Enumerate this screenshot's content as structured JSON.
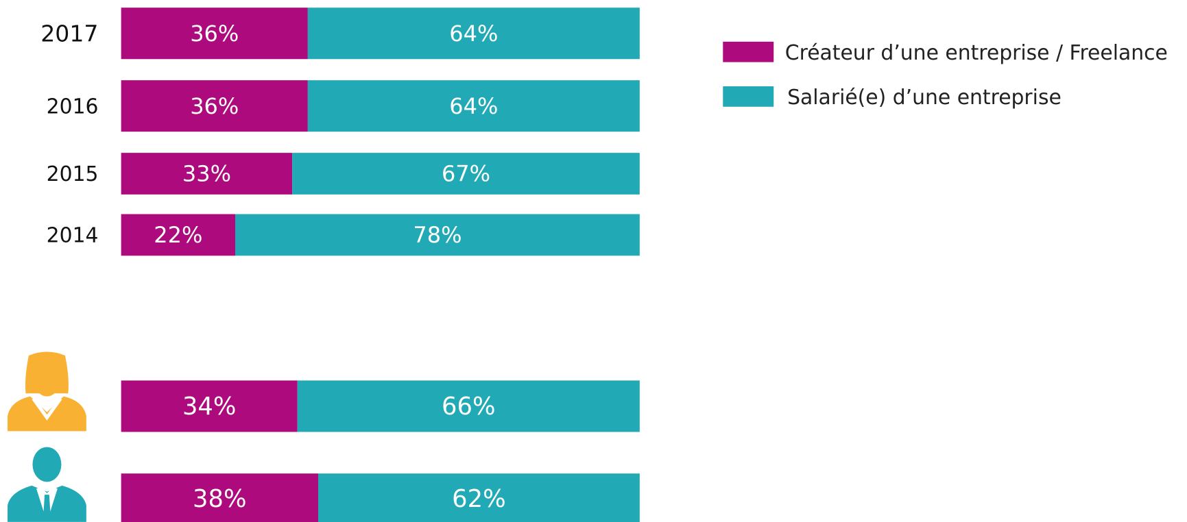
{
  "chart_data": [
    {
      "type": "bar",
      "orientation": "horizontal",
      "stacked": true,
      "categories": [
        "2017",
        "2016",
        "2015",
        "2014"
      ],
      "series": [
        {
          "name": "Créateur d’une entreprise / Freelance",
          "color": "#ac0a7d",
          "values": [
            36,
            36,
            33,
            22
          ],
          "value_labels": [
            "36%",
            "36%",
            "33%",
            "22%"
          ]
        },
        {
          "name": "Salarié(e) d’une entreprise",
          "color": "#21a9b5",
          "values": [
            64,
            64,
            67,
            78
          ],
          "value_labels": [
            "64%",
            "64%",
            "67%",
            "78%"
          ]
        }
      ],
      "xlim": [
        0,
        100
      ],
      "legend": "upper right"
    },
    {
      "type": "bar",
      "orientation": "horizontal",
      "stacked": true,
      "categories": [
        null,
        null
      ],
      "series": [
        {
          "color": "#ac0a7d",
          "values": [
            34,
            38
          ],
          "value_labels": [
            "34%",
            "38%"
          ]
        },
        {
          "color": "#21a9b5",
          "values": [
            66,
            62
          ],
          "value_labels": [
            "66%",
            "62%"
          ]
        }
      ],
      "xlim": [
        0,
        100
      ]
    }
  ]
}
